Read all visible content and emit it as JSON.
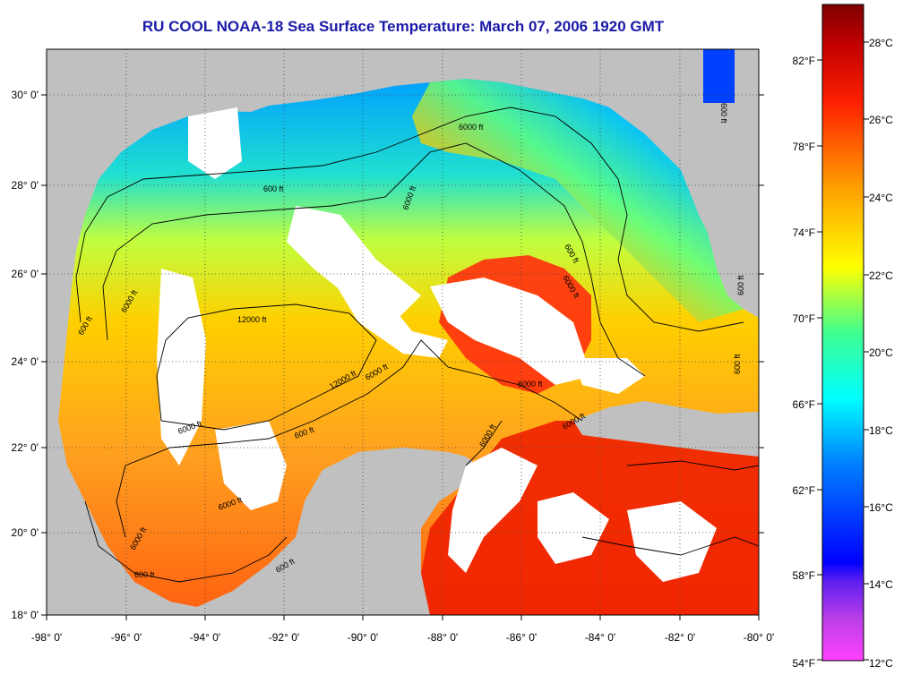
{
  "title": "RU COOL  NOAA-18  Sea Surface Temperature:  March 07, 2006 1920 GMT",
  "map": {
    "lon_labels": [
      "-98° 0'",
      "-96° 0'",
      "-94° 0'",
      "-92° 0'",
      "-90° 0'",
      "-88° 0'",
      "-86° 0'",
      "-84° 0'",
      "-82° 0'",
      "-80° 0'"
    ],
    "lat_labels": [
      "30° 0'",
      "28° 0'",
      "26° 0'",
      "24° 0'",
      "22° 0'",
      "20° 0'",
      "18° 0'"
    ],
    "lon_range": [
      -98,
      -80
    ],
    "lat_range": [
      18,
      31
    ],
    "colors": {
      "land": "#c0c0c0",
      "cloud": "#ffffff",
      "contour": "#000000"
    }
  },
  "contour_labels": [
    "600 ft",
    "6000 ft",
    "12000 ft",
    "600 ft",
    "6000 ft",
    "12000 ft",
    "6000 ft",
    "600 ft",
    "6000 ft",
    "6000 ft",
    "600 ft",
    "600 ft",
    "6000 ft",
    "6000 ft",
    "600 ft",
    "6000 ft",
    "600 ft",
    "6000 ft",
    "600 ft",
    "600 ft",
    "6000 ft",
    "6000 ft"
  ],
  "colorbar": {
    "fahrenheit": [
      "82°F",
      "78°F",
      "74°F",
      "70°F",
      "66°F",
      "62°F",
      "58°F",
      "54°F"
    ],
    "celsius": [
      "28°C",
      "26°C",
      "24°C",
      "22°C",
      "20°C",
      "18°C",
      "16°C",
      "14°C",
      "12°C"
    ],
    "stops": [
      "#ff40ff",
      "#a040e0",
      "#0000ff",
      "#0080ff",
      "#00ffff",
      "#40ff80",
      "#ffff00",
      "#ffa000",
      "#ff3000",
      "#c00000",
      "#800000"
    ]
  }
}
